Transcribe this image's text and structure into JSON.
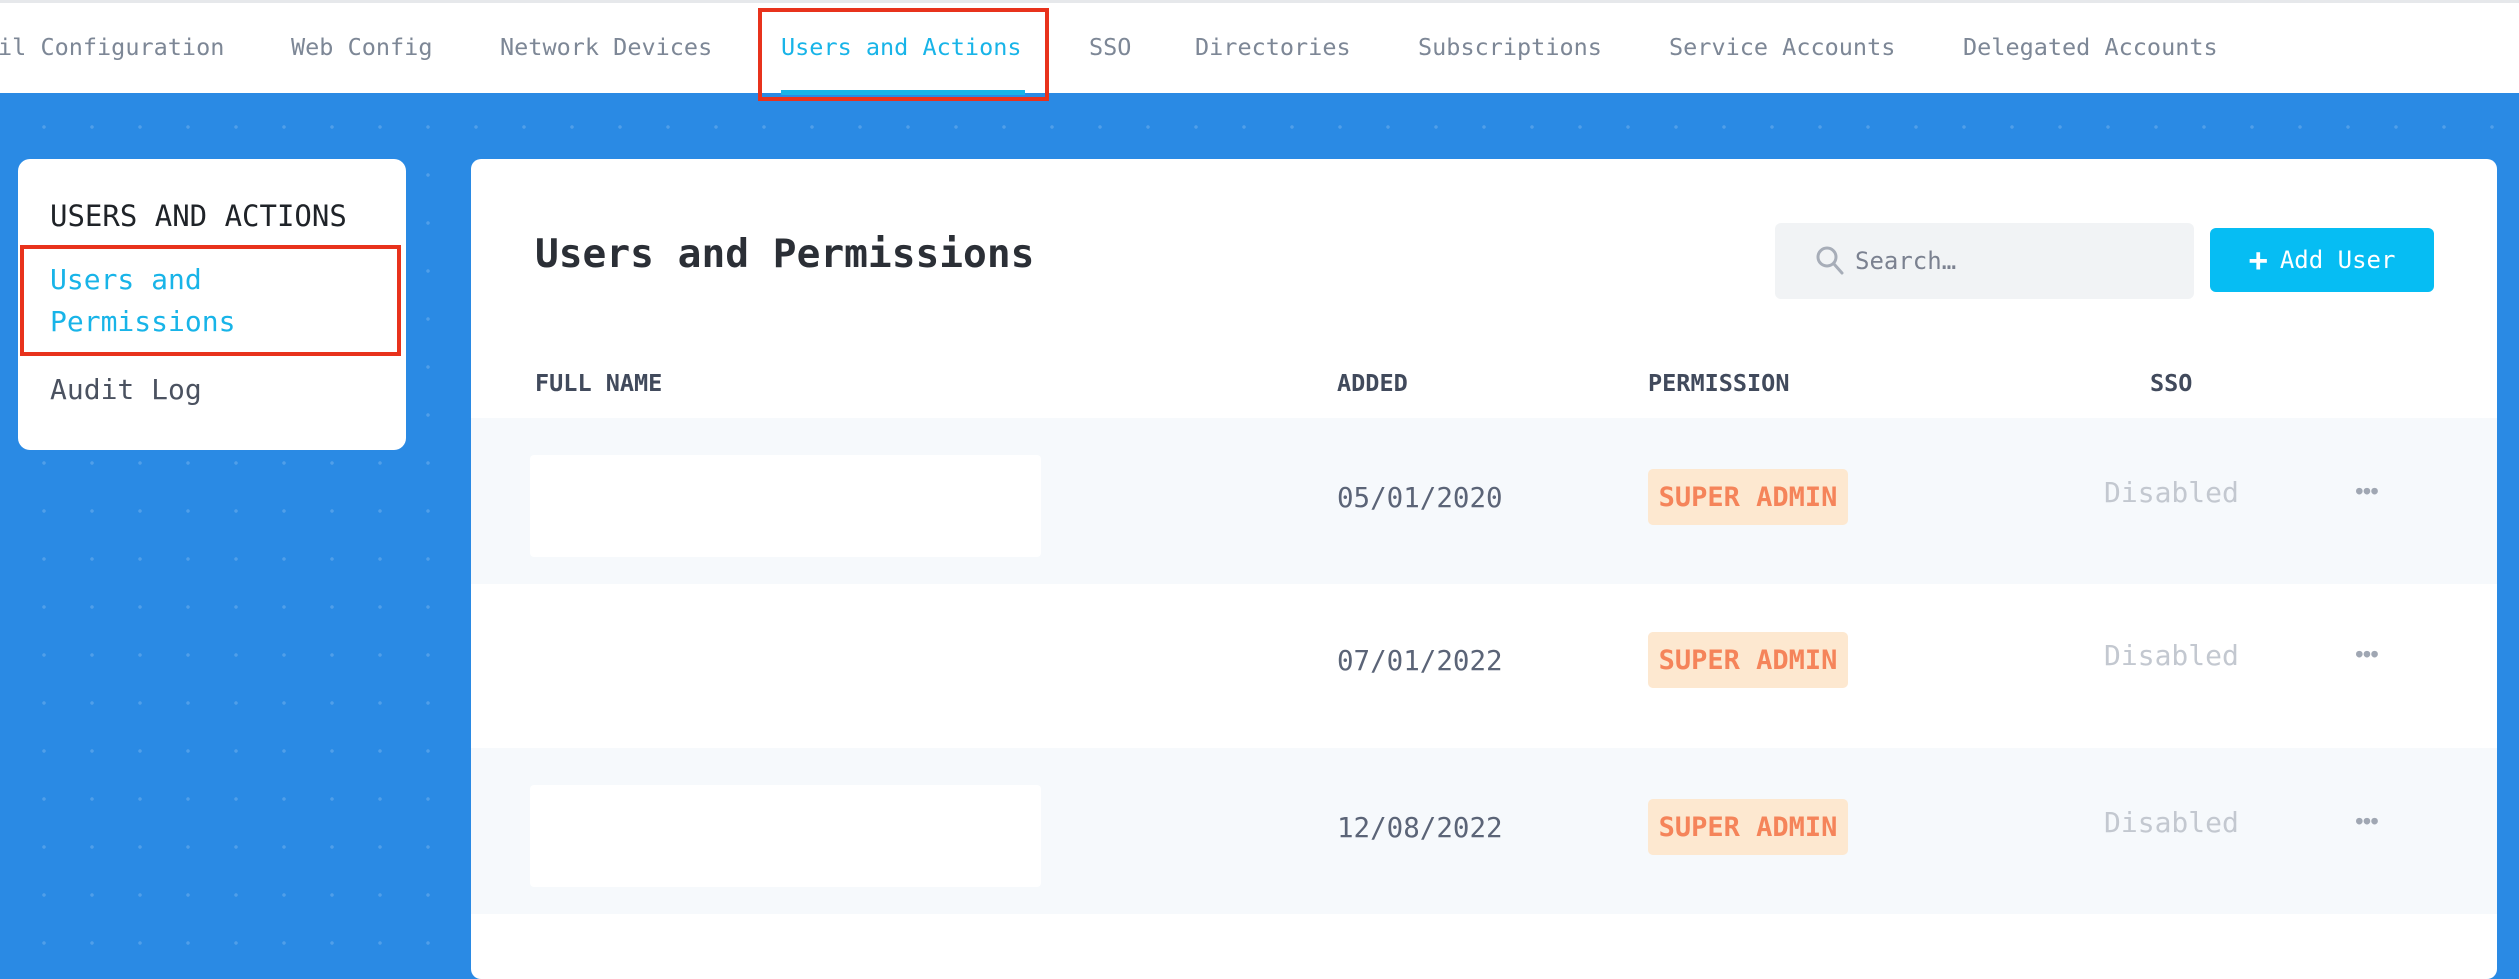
{
  "nav": {
    "tabs": [
      {
        "label": "il Configuration"
      },
      {
        "label": "Web Config"
      },
      {
        "label": "Network Devices"
      },
      {
        "label": "Users and Actions",
        "active": true
      },
      {
        "label": "SSO"
      },
      {
        "label": "Directories"
      },
      {
        "label": "Subscriptions"
      },
      {
        "label": "Service Accounts"
      },
      {
        "label": "Delegated Accounts"
      }
    ]
  },
  "sidebar": {
    "heading": "USERS AND ACTIONS",
    "items": [
      {
        "label": "Users and Permissions",
        "active": true
      },
      {
        "label": "Audit Log"
      }
    ]
  },
  "main": {
    "title": "Users and Permissions",
    "search": {
      "placeholder": "Search…",
      "value": ""
    },
    "add_button": "Add User",
    "columns": [
      "FULL NAME",
      "ADDED",
      "PERMISSION",
      "SSO"
    ],
    "rows": [
      {
        "name": "",
        "added": "05/01/2020",
        "permission": "SUPER ADMIN",
        "sso": "Disabled"
      },
      {
        "name": "",
        "added": "07/01/2022",
        "permission": "SUPER ADMIN",
        "sso": "Disabled"
      },
      {
        "name": "",
        "added": "12/08/2022",
        "permission": "SUPER ADMIN",
        "sso": "Disabled"
      }
    ]
  },
  "colors": {
    "accent": "#18b4e8",
    "button": "#06bdf3",
    "background": "#2a8ae4",
    "badge_text": "#f5845a",
    "badge_bg": "#fde8d0",
    "highlight": "#e8321c"
  }
}
